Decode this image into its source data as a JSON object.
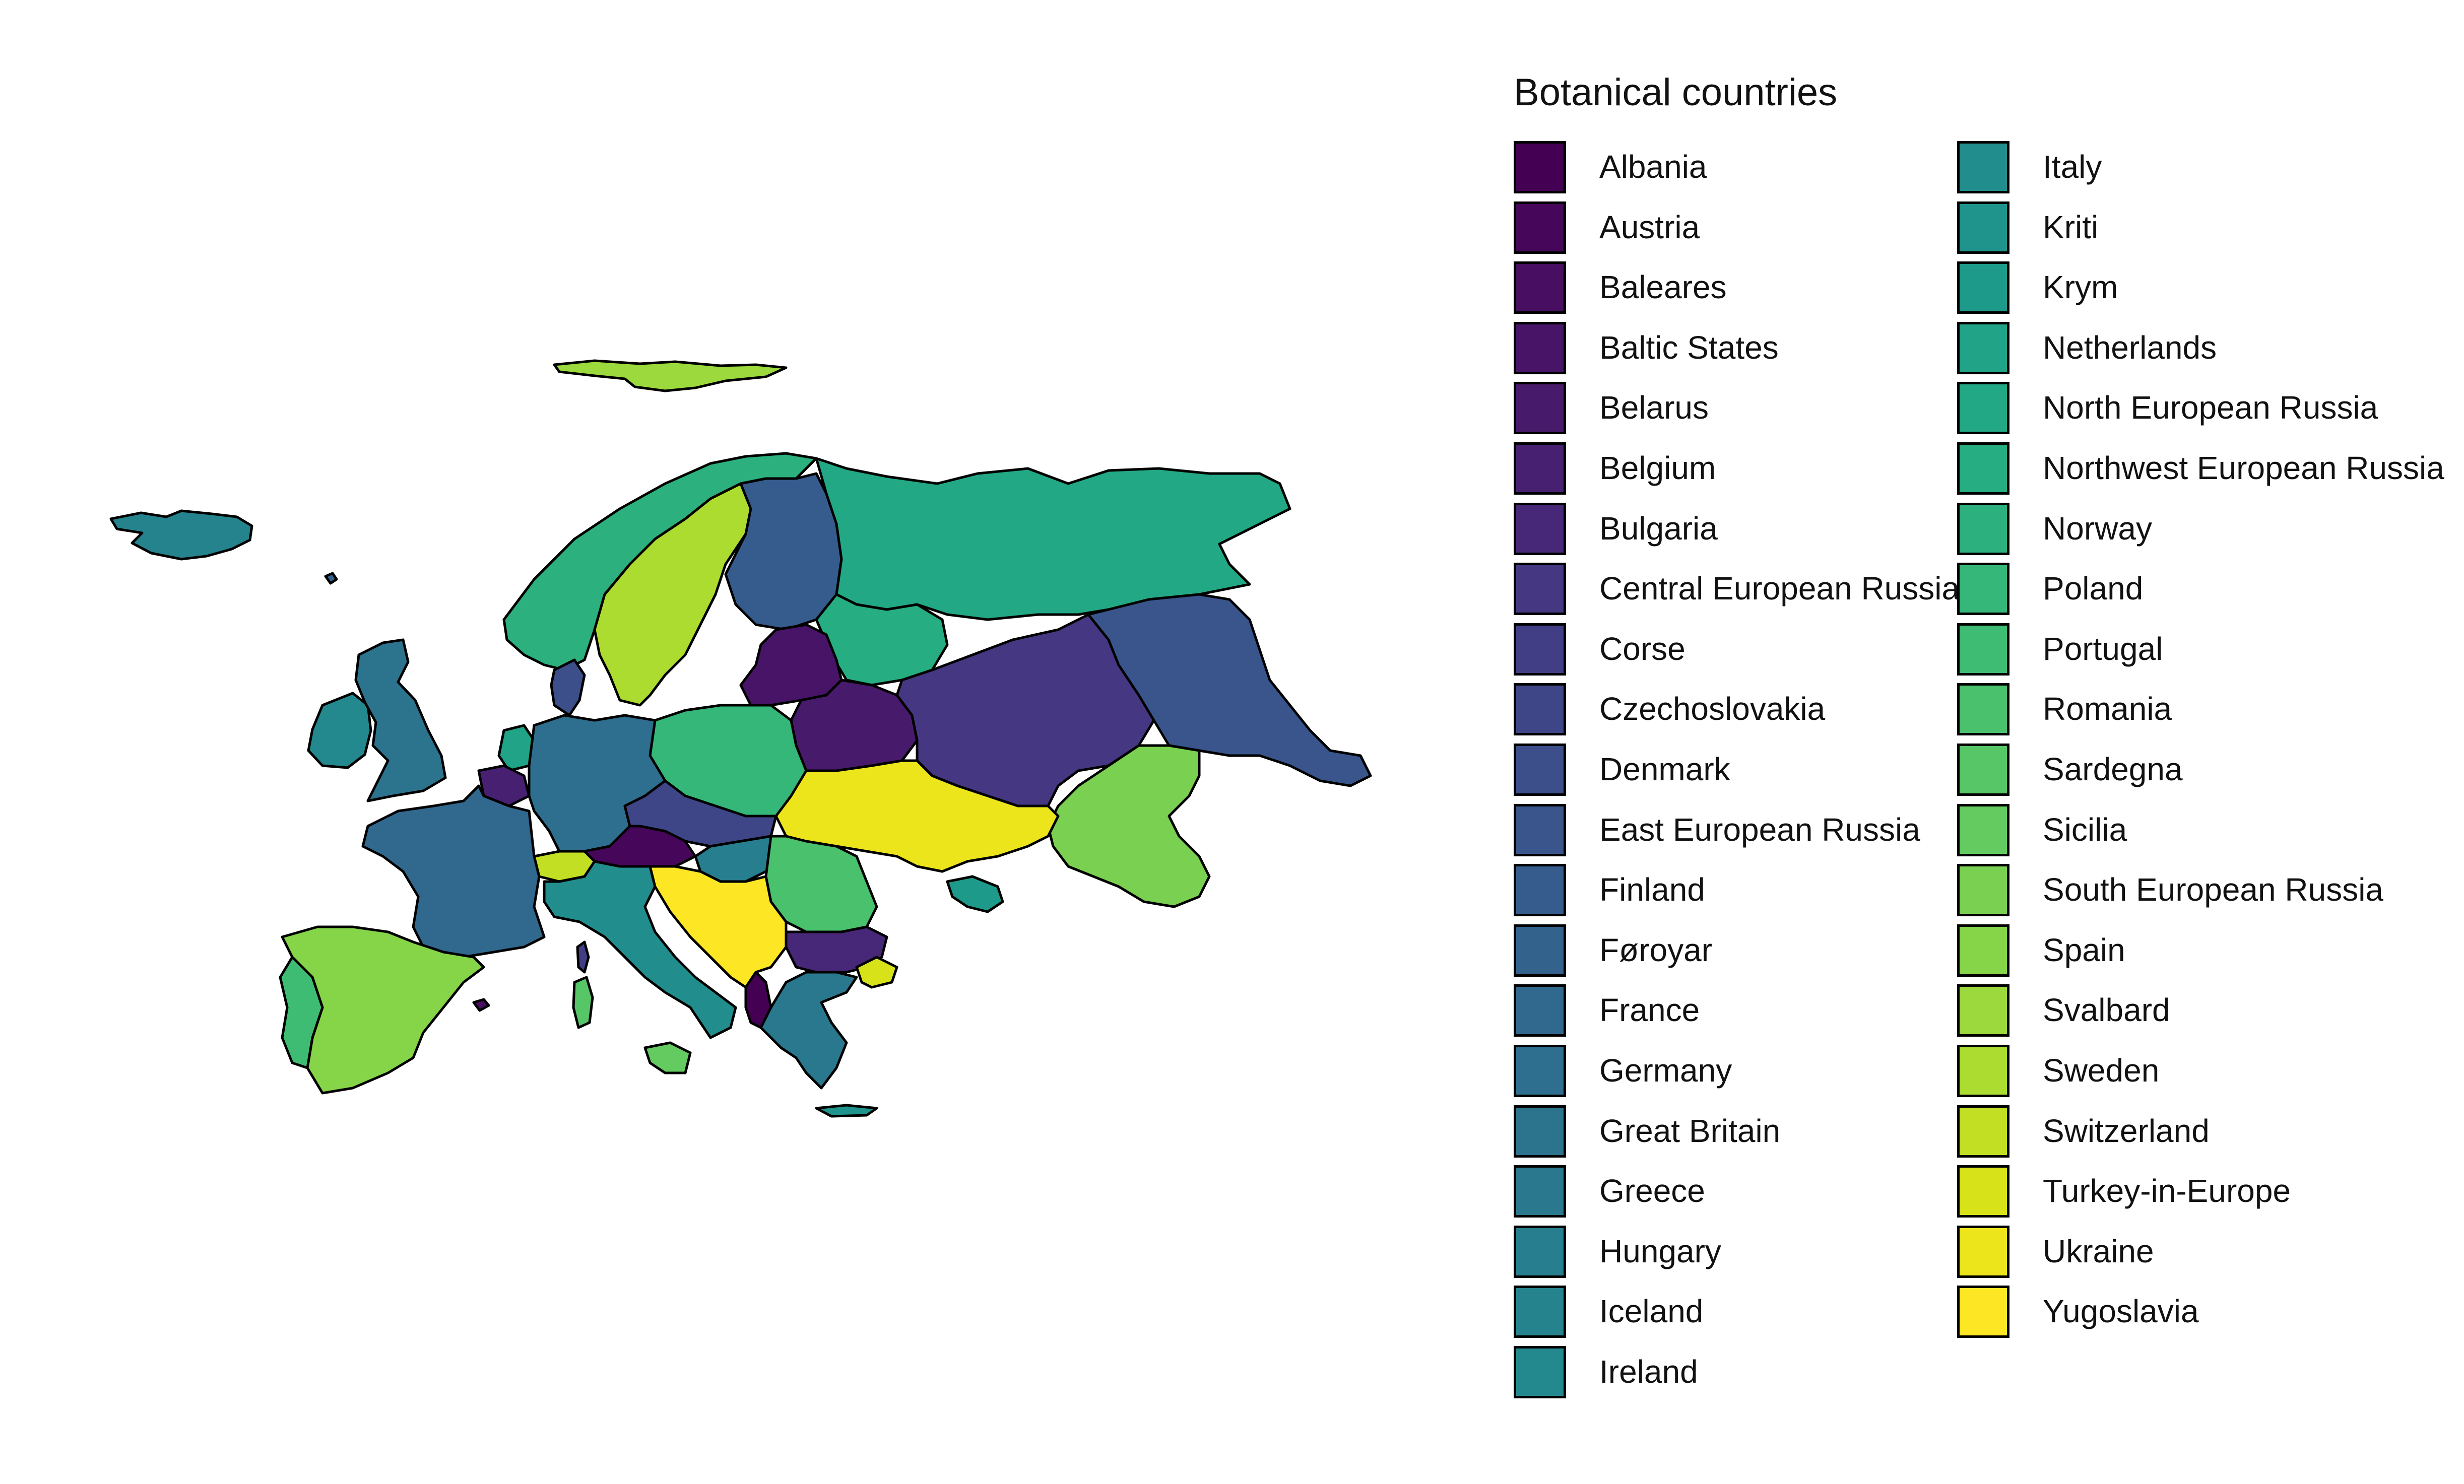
{
  "legend": {
    "title": "Botanical countries",
    "items": [
      {
        "label": "Albania",
        "color": "#440154"
      },
      {
        "label": "Austria",
        "color": "#46075a"
      },
      {
        "label": "Baleares",
        "color": "#470e61"
      },
      {
        "label": "Baltic States",
        "color": "#481467"
      },
      {
        "label": "Belarus",
        "color": "#481a6c"
      },
      {
        "label": "Belgium",
        "color": "#482071"
      },
      {
        "label": "Bulgaria",
        "color": "#472777"
      },
      {
        "label": "Central European Russia",
        "color": "#453781"
      },
      {
        "label": "Corse",
        "color": "#423e85"
      },
      {
        "label": "Czechoslovakia",
        "color": "#3f4688"
      },
      {
        "label": "Denmark",
        "color": "#3c4f8a"
      },
      {
        "label": "East European Russia",
        "color": "#39558c"
      },
      {
        "label": "Finland",
        "color": "#365c8d"
      },
      {
        "label": "Føroyar",
        "color": "#33628d"
      },
      {
        "label": "France",
        "color": "#31688e"
      },
      {
        "label": "Germany",
        "color": "#2e6e8e"
      },
      {
        "label": "Great Britain",
        "color": "#2c738e"
      },
      {
        "label": "Greece",
        "color": "#2a788e"
      },
      {
        "label": "Hungary",
        "color": "#277e8e"
      },
      {
        "label": "Iceland",
        "color": "#25838e"
      },
      {
        "label": "Ireland",
        "color": "#23898e"
      },
      {
        "label": "Italy",
        "color": "#218e8d"
      },
      {
        "label": "Kriti",
        "color": "#1f948c"
      },
      {
        "label": "Krym",
        "color": "#1e9a8a"
      },
      {
        "label": "Netherlands",
        "color": "#20a386"
      },
      {
        "label": "North European Russia",
        "color": "#22a884"
      },
      {
        "label": "Northwest European Russia",
        "color": "#26ad81"
      },
      {
        "label": "Norway",
        "color": "#2cb17e"
      },
      {
        "label": "Poland",
        "color": "#35b779"
      },
      {
        "label": "Portugal",
        "color": "#3fbc73"
      },
      {
        "label": "Romania",
        "color": "#4ac16d"
      },
      {
        "label": "Sardegna",
        "color": "#56c667"
      },
      {
        "label": "Sicilia",
        "color": "#63cb5f"
      },
      {
        "label": "South European Russia",
        "color": "#7ad151"
      },
      {
        "label": "Spain",
        "color": "#86d549"
      },
      {
        "label": "Svalbard",
        "color": "#9bd93c"
      },
      {
        "label": "Sweden",
        "color": "#addc30"
      },
      {
        "label": "Switzerland",
        "color": "#c2df23"
      },
      {
        "label": "Turkey-in-Europe",
        "color": "#d8e219"
      },
      {
        "label": "Ukraine",
        "color": "#ece51b"
      },
      {
        "label": "Yugoslavia",
        "color": "#fde725"
      }
    ]
  }
}
